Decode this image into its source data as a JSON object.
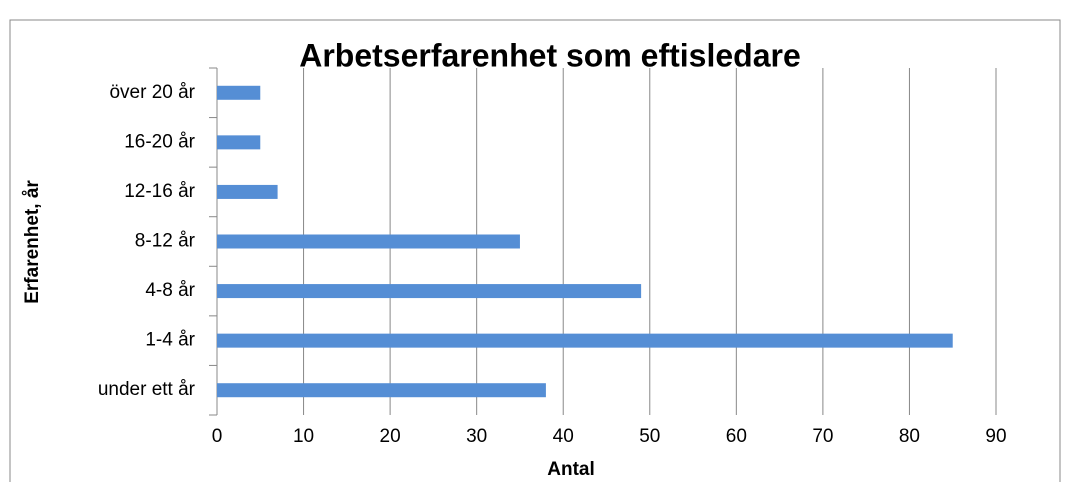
{
  "chart_data": {
    "type": "bar",
    "orientation": "horizontal",
    "title": "Arbetserfarenhet som eftisledare",
    "x_label": "Antal",
    "y_label": "Erfarenhet, år",
    "categories": [
      "under ett år",
      "1-4 år",
      "4-8 år",
      "8-12 år",
      "12-16 år",
      "16-20 år",
      "över 20 år"
    ],
    "values": [
      38,
      85,
      49,
      35,
      7,
      5,
      5
    ],
    "color": "#558ed5",
    "xlim": [
      0,
      90
    ],
    "xticks": [
      0,
      10,
      20,
      30,
      40,
      50,
      60,
      70,
      80,
      90
    ],
    "grid": true
  }
}
